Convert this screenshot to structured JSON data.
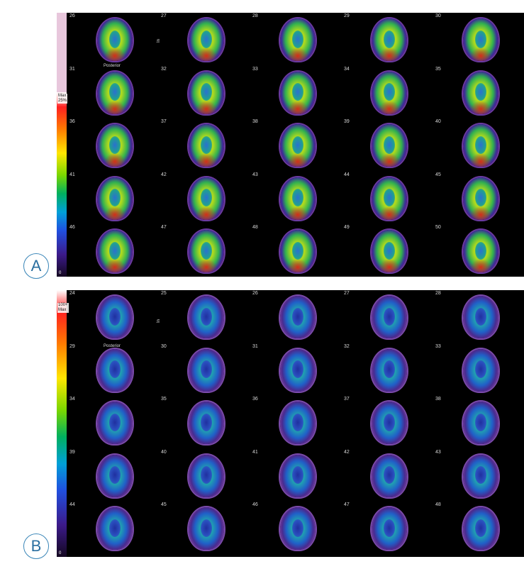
{
  "panels": [
    {
      "id": "A",
      "scale_top": "Max\n25%",
      "scale_bottom": "0",
      "view_label_top": "In",
      "view_label_row": "Posterior",
      "slices": [
        [
          "26",
          "27",
          "28",
          "29",
          "30"
        ],
        [
          "31",
          "32",
          "33",
          "34",
          "35"
        ],
        [
          "36",
          "37",
          "38",
          "39",
          "40"
        ],
        [
          "41",
          "42",
          "43",
          "44",
          "45"
        ],
        [
          "46",
          "47",
          "48",
          "49",
          "50"
        ]
      ]
    },
    {
      "id": "B",
      "scale_top": "100+\nMax",
      "scale_bottom": "0",
      "view_label_top": "In",
      "view_label_row": "Posterior",
      "slices": [
        [
          "24",
          "25",
          "26",
          "27",
          "28"
        ],
        [
          "29",
          "30",
          "31",
          "32",
          "33"
        ],
        [
          "34",
          "35",
          "36",
          "37",
          "38"
        ],
        [
          "39",
          "40",
          "41",
          "42",
          "43"
        ],
        [
          "44",
          "45",
          "46",
          "47",
          "48"
        ]
      ]
    }
  ]
}
